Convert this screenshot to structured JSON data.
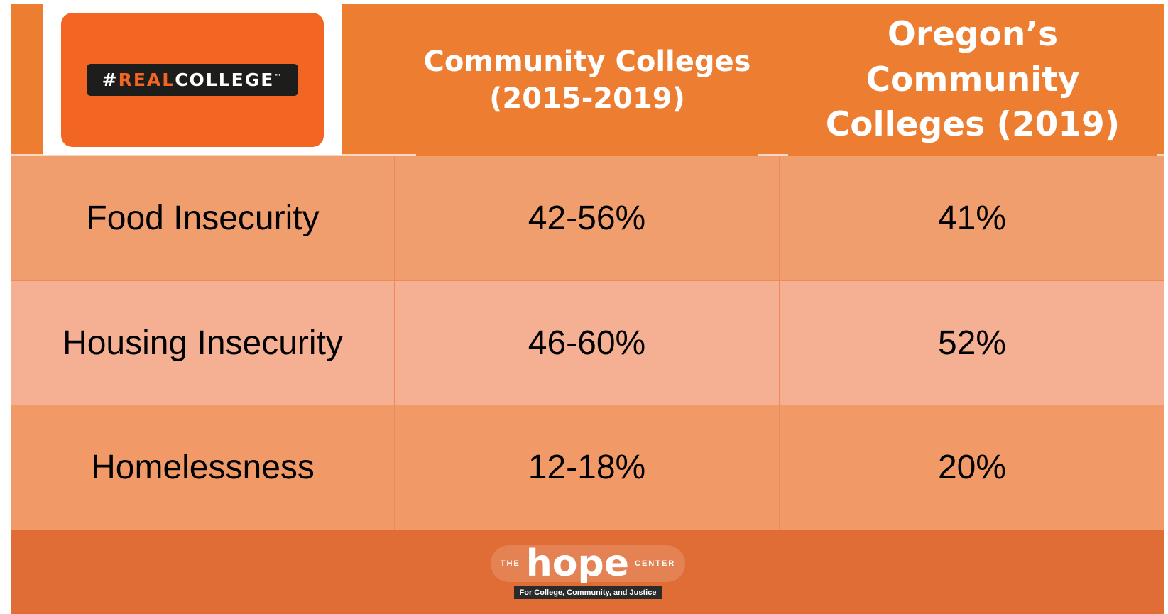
{
  "logo": {
    "hash": "#",
    "real": "REAL",
    "college": "COLLEGE",
    "mark": "™"
  },
  "table": {
    "headers": [
      "Community Colleges (2015-2019)",
      "Oregon’s Community Colleges (2019)"
    ],
    "rows": [
      [
        "Food Insecurity",
        "42-56%",
        "41%"
      ],
      [
        "Housing Insecurity",
        "46-60%",
        "52%"
      ],
      [
        "Homelessness",
        "12-18%",
        "20%"
      ]
    ]
  },
  "footer": {
    "the": "THE",
    "hope": "hope",
    "center": "CENTER",
    "tagline": "For College, Community, and Justice"
  }
}
